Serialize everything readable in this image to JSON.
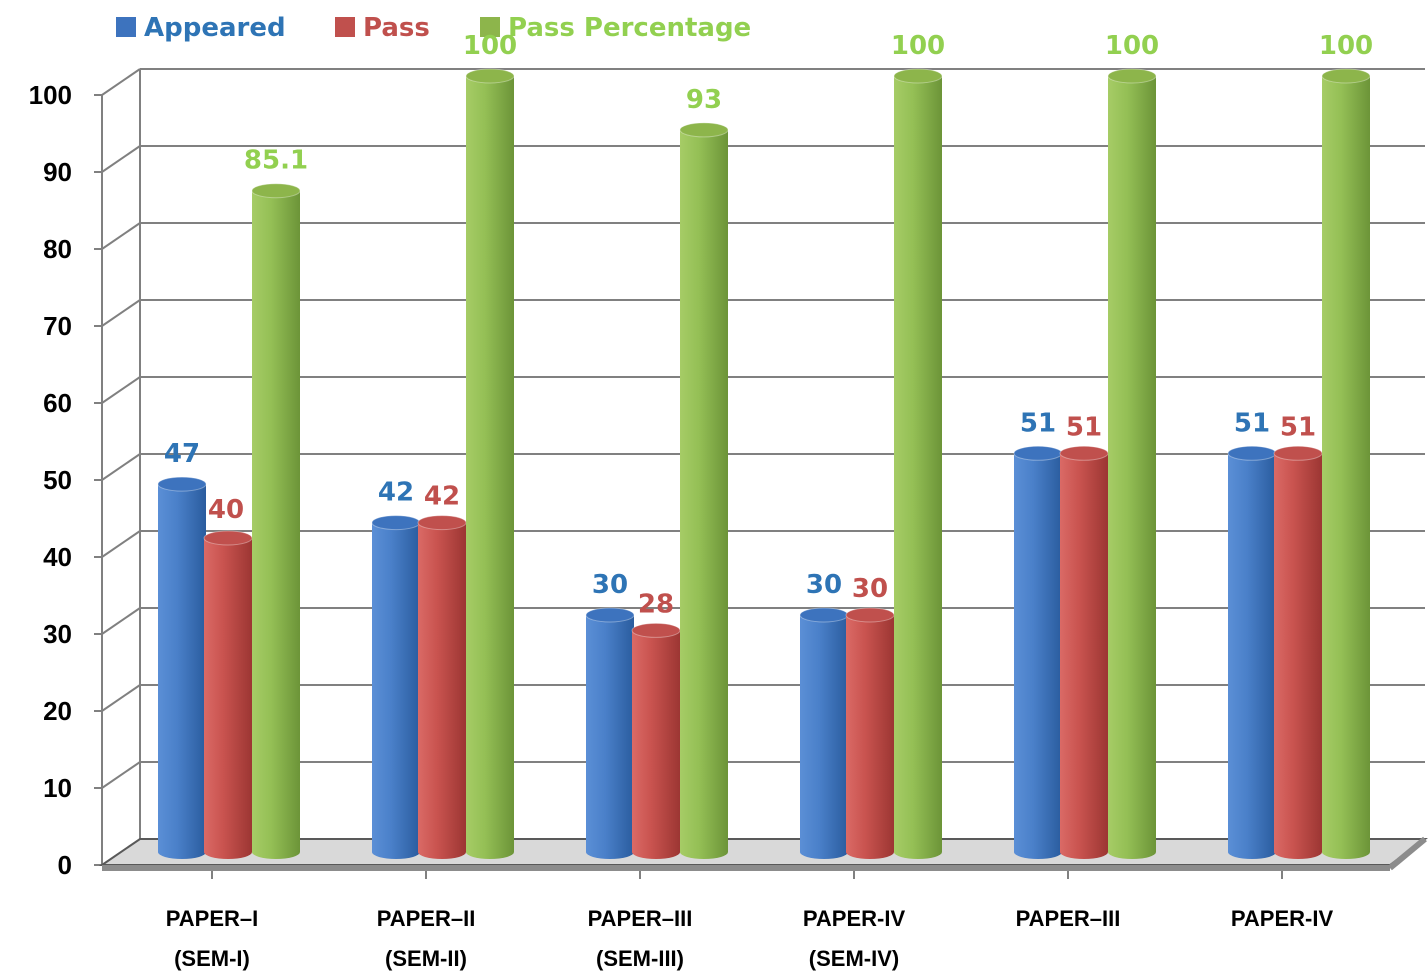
{
  "chart_data": {
    "type": "bar",
    "title": "",
    "xlabel": "",
    "ylabel": "",
    "ylim": [
      0,
      100
    ],
    "yticks": [
      0,
      10,
      20,
      30,
      40,
      50,
      60,
      70,
      80,
      90,
      100
    ],
    "grid": true,
    "legend_position": "top-left",
    "categories": [
      [
        "PAPER–I",
        "(SEM-I)"
      ],
      [
        "PAPER–II",
        "(SEM-II)"
      ],
      [
        "PAPER–III",
        "(SEM-III)"
      ],
      [
        "PAPER-IV",
        "(SEM-IV)"
      ],
      [
        "PAPER–III",
        ""
      ],
      [
        "PAPER-IV",
        ""
      ]
    ],
    "series": [
      {
        "name": "Appeared",
        "color": "#3d73be",
        "label_color": "#2e74b5",
        "values": [
          47,
          42,
          30,
          30,
          51,
          51
        ],
        "labels": [
          "47",
          "42",
          "30",
          "30",
          "51",
          "51"
        ]
      },
      {
        "name": "Pass",
        "color": "#c0504d",
        "label_color": "#c0504d",
        "values": [
          40,
          42,
          28,
          30,
          51,
          51
        ],
        "labels": [
          "40",
          "42",
          "28",
          "30",
          "51",
          "51"
        ]
      },
      {
        "name": "Pass Percentage",
        "color": "#8db54b",
        "label_color": "#92d050",
        "values": [
          85.1,
          100,
          93,
          100,
          100,
          100
        ],
        "labels": [
          "85.1",
          "100",
          "93",
          "100",
          "100",
          "100"
        ]
      }
    ]
  }
}
